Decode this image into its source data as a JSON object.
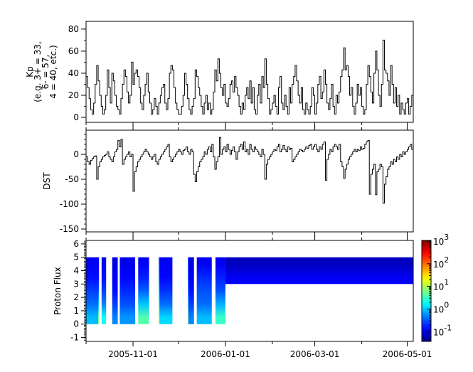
{
  "chart_data": [
    {
      "type": "line",
      "ylabel_lines": [
        "Kp",
        "(e.g. 3+ = 33,",
        "6- = 57,",
        "4 = 40, etc.)"
      ],
      "ylim": [
        -4.5,
        87
      ],
      "yticks": [
        "0",
        "20",
        "40",
        "60",
        "80"
      ],
      "ytick_values": [
        0,
        20,
        40,
        60,
        80
      ],
      "xlim": [
        "2005-10-01",
        "2006-05-05"
      ],
      "series_start": "2005-10-01",
      "series_step_days": 1,
      "color": "#000000",
      "values": [
        37,
        27,
        17,
        7,
        3,
        13,
        30,
        47,
        33,
        20,
        10,
        3,
        7,
        20,
        43,
        27,
        13,
        40,
        33,
        20,
        10,
        7,
        3,
        17,
        30,
        43,
        37,
        23,
        13,
        20,
        50,
        30,
        40,
        43,
        37,
        27,
        13,
        7,
        20,
        30,
        40,
        23,
        13,
        3,
        7,
        17,
        10,
        3,
        13,
        20,
        27,
        30,
        13,
        7,
        17,
        40,
        47,
        43,
        27,
        13,
        7,
        3,
        3,
        10,
        20,
        40,
        30,
        17,
        7,
        3,
        10,
        17,
        43,
        37,
        27,
        20,
        10,
        3,
        13,
        20,
        7,
        13,
        3,
        7,
        23,
        43,
        33,
        53,
        40,
        27,
        20,
        30,
        13,
        10,
        17,
        30,
        33,
        23,
        37,
        27,
        20,
        10,
        3,
        13,
        7,
        20,
        27,
        17,
        33,
        13,
        27,
        7,
        3,
        20,
        30,
        13,
        37,
        27,
        53,
        30,
        17,
        3,
        7,
        13,
        20,
        10,
        3,
        27,
        37,
        13,
        7,
        20,
        10,
        3,
        27,
        13,
        30,
        37,
        47,
        33,
        20,
        13,
        27,
        7,
        3,
        13,
        7,
        3,
        10,
        27,
        20,
        3,
        13,
        30,
        37,
        17,
        23,
        43,
        30,
        13,
        7,
        17,
        30,
        10,
        3,
        20,
        13,
        23,
        37,
        43,
        63,
        43,
        47,
        37,
        20,
        27,
        10,
        3,
        13,
        30,
        20,
        27,
        10,
        3,
        7,
        30,
        47,
        37,
        23,
        13,
        40,
        60,
        43,
        20,
        10,
        30,
        70,
        43,
        40,
        33,
        20,
        47,
        30,
        13,
        27,
        10,
        20,
        3,
        13,
        7,
        3,
        13,
        17,
        3,
        10,
        20,
        47
      ]
    },
    {
      "type": "line",
      "ylabel": "DST",
      "ylim": [
        -155.7,
        48.6
      ],
      "yticks": [
        "-150",
        "-100",
        "-50",
        "0"
      ],
      "ytick_values": [
        -150,
        -100,
        -50,
        0
      ],
      "xlim": [
        "2005-10-01",
        "2006-05-05"
      ],
      "series_start": "2005-10-01",
      "series_step_days": 1,
      "color": "#000000",
      "values": [
        -5,
        -15,
        -20,
        -12,
        -8,
        -5,
        -3,
        -50,
        -25,
        -15,
        -10,
        -5,
        -2,
        0,
        5,
        -5,
        -10,
        -15,
        -5,
        5,
        10,
        28,
        15,
        30,
        -20,
        -10,
        -5,
        0,
        5,
        -5,
        0,
        -74,
        -35,
        -25,
        -15,
        -10,
        -5,
        0,
        5,
        10,
        5,
        0,
        -5,
        -10,
        -5,
        0,
        -15,
        -20,
        -10,
        -5,
        0,
        5,
        10,
        15,
        20,
        -5,
        -15,
        -10,
        -5,
        0,
        5,
        10,
        5,
        0,
        8,
        10,
        15,
        5,
        0,
        10,
        5,
        -40,
        -55,
        -35,
        -25,
        -15,
        -10,
        -5,
        5,
        0,
        10,
        15,
        5,
        20,
        -5,
        -30,
        -15,
        -5,
        34,
        0,
        10,
        15,
        5,
        20,
        10,
        0,
        8,
        15,
        5,
        -10,
        5,
        15,
        20,
        10,
        25,
        5,
        10,
        0,
        20,
        10,
        5,
        15,
        10,
        5,
        0,
        -5,
        10,
        0,
        -50,
        -20,
        -10,
        -5,
        0,
        5,
        10,
        8,
        15,
        20,
        5,
        10,
        18,
        10,
        5,
        15,
        10,
        12,
        -15,
        -10,
        -5,
        0,
        5,
        10,
        8,
        5,
        10,
        15,
        12,
        18,
        20,
        10,
        15,
        20,
        10,
        5,
        15,
        10,
        20,
        25,
        -52,
        -10,
        0,
        10,
        5,
        15,
        20,
        15,
        10,
        20,
        -15,
        -25,
        -48,
        -30,
        -20,
        -10,
        -5,
        0,
        5,
        10,
        5,
        10,
        8,
        15,
        10,
        12,
        20,
        25,
        28,
        -80,
        -40,
        -30,
        -20,
        -81,
        -35,
        -30,
        -20,
        -25,
        -98,
        -60,
        -45,
        -30,
        -25,
        -15,
        -20,
        -10,
        -15,
        -5,
        -10,
        0,
        -5,
        5,
        0,
        5,
        10,
        15,
        20,
        10,
        -40
      ]
    },
    {
      "type": "heatmap",
      "ylabel": "Proton Flux",
      "ylim": [
        -1.29,
        6.26
      ],
      "yticks": [
        "-1",
        "0",
        "1",
        "2",
        "3",
        "4",
        "5",
        "6"
      ],
      "ytick_values": [
        -1,
        0,
        1,
        2,
        3,
        4,
        5,
        6
      ],
      "xlim": [
        "2005-10-01",
        "2006-05-05"
      ],
      "xticks": [
        "2005-11-01",
        "2006-01-01",
        "2006-03-01",
        "2006-05-01"
      ],
      "x_minor_ticks": [
        "2005-10-01",
        "2005-12-01",
        "2006-02-01",
        "2006-04-01"
      ],
      "channel_edges": [
        0,
        1,
        2,
        3,
        4,
        5
      ],
      "colorscale": "jet",
      "color_log_range": [
        -1.43,
        3.03
      ],
      "colorbar_ticks": [
        {
          "base": "10",
          "exp": "3",
          "value": 3
        },
        {
          "base": "10",
          "exp": "2",
          "value": 2
        },
        {
          "base": "10",
          "exp": "1",
          "value": 1
        },
        {
          "base": "10",
          "exp": "0",
          "value": 0
        },
        {
          "base": "10",
          "exp": "-1",
          "value": -1
        }
      ],
      "segments": [
        {
          "start": "2005-10-01T00:00",
          "end": "2005-10-09T00:00",
          "flux": [
            0.9,
            0.4,
            0.25,
            0.15,
            0.12
          ]
        },
        {
          "start": "2005-10-09T00:00",
          "end": "2005-10-09T12:00",
          "flux": [
            6,
            1,
            0.3,
            0.15,
            0.12
          ]
        },
        {
          "start": "2005-10-11T06:00",
          "end": "2005-10-14T06:00",
          "flux": [
            2,
            0.5,
            0.25,
            0.15,
            0.12
          ]
        },
        {
          "start": "2005-10-18T06:00",
          "end": "2005-10-21T22:00",
          "flux": [
            0.5,
            0.25,
            0.15,
            0.12,
            0.1
          ]
        },
        {
          "start": "2005-10-23T06:00",
          "end": "2005-11-02T10:00",
          "flux": [
            0.6,
            0.3,
            0.2,
            0.14,
            0.11
          ]
        },
        {
          "start": "2005-11-04T10:00",
          "end": "2005-11-11T14:00",
          "flux": [
            4,
            1,
            0.35,
            0.18,
            0.12
          ]
        },
        {
          "start": "2005-11-18T00:00",
          "end": "2005-11-18T12:00",
          "flux": [
            8,
            3,
            1,
            0.5,
            0.3
          ]
        },
        {
          "start": "2005-11-18T12:00",
          "end": "2005-11-27T00:00",
          "flux": [
            1.2,
            0.4,
            0.22,
            0.14,
            0.12
          ]
        },
        {
          "start": "2005-12-07T06:00",
          "end": "2005-12-07T12:00",
          "flux": [
            10,
            3,
            1,
            0.5,
            0.3
          ]
        },
        {
          "start": "2005-12-07T12:00",
          "end": "2005-12-11T06:00",
          "flux": [
            0.5,
            0.25,
            0.15,
            0.12,
            0.1
          ]
        },
        {
          "start": "2005-12-13T02:00",
          "end": "2005-12-23T00:00",
          "flux": [
            0.9,
            0.4,
            0.3,
            0.2,
            0.12
          ]
        },
        {
          "start": "2005-12-25T10:00",
          "end": "2006-01-01T00:00",
          "flux": [
            3,
            0.8,
            0.3,
            0.18,
            0.12
          ]
        },
        {
          "start": "2006-01-01T00:00",
          "end": "2006-05-05T00:00",
          "flux": [
            null,
            null,
            null,
            0.12,
            0.07
          ]
        }
      ]
    }
  ]
}
